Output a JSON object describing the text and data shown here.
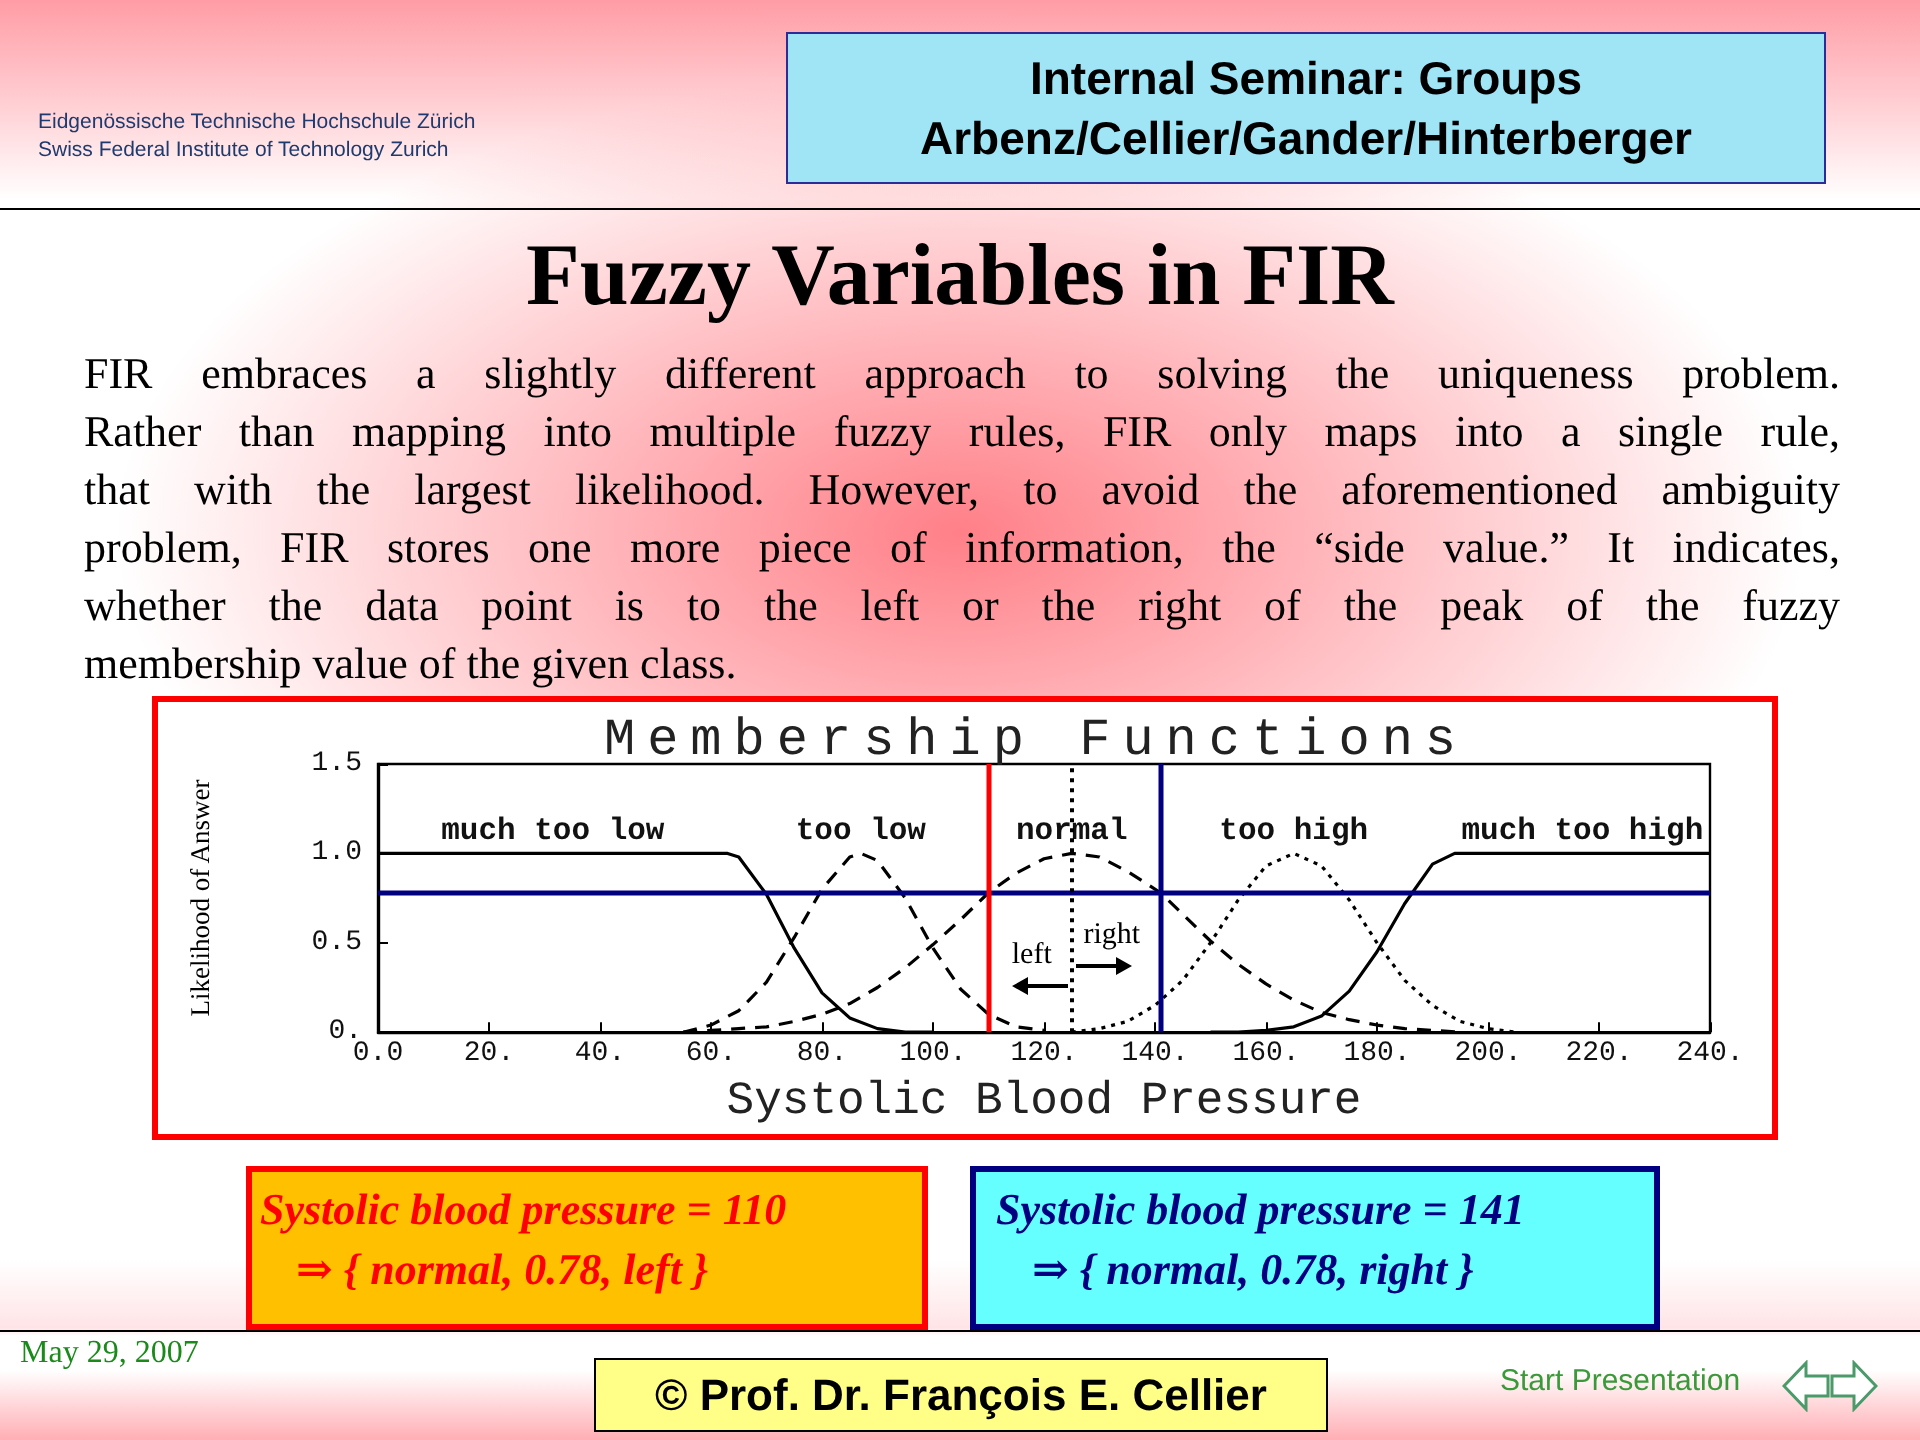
{
  "chart_data": {
    "type": "line",
    "title": "Membership Functions",
    "xlabel": "Systolic Blood Pressure",
    "ylabel": "Likelihood of Answer",
    "xlim": [
      0,
      240
    ],
    "xticks": [
      {
        "value": 0,
        "label": "0.0"
      },
      {
        "value": 20,
        "label": "20."
      },
      {
        "value": 40,
        "label": "40."
      },
      {
        "value": 60,
        "label": "60."
      },
      {
        "value": 80,
        "label": "80."
      },
      {
        "value": 100,
        "label": "100."
      },
      {
        "value": 120,
        "label": "120."
      },
      {
        "value": 140,
        "label": "140."
      },
      {
        "value": 160,
        "label": "160."
      },
      {
        "value": 180,
        "label": "180."
      },
      {
        "value": 200,
        "label": "200."
      },
      {
        "value": 220,
        "label": "220."
      },
      {
        "value": 240,
        "label": "240."
      }
    ],
    "ylim": [
      0,
      1.5
    ],
    "yticks": [
      {
        "value": 0,
        "label": "0."
      },
      0.5,
      {
        "value": 1,
        "label": "1.0"
      },
      1.5
    ],
    "marker": "none",
    "series": [
      {
        "name": "much too low",
        "color": "#000000",
        "line_style": "solid",
        "x": [
          0,
          63,
          65,
          70,
          75,
          80,
          85,
          90,
          95,
          100
        ],
        "values": [
          1,
          1,
          0.98,
          0.77,
          0.47,
          0.22,
          0.08,
          0.02,
          0,
          0
        ]
      },
      {
        "name": "too low",
        "color": "#000000",
        "line_style": "dashed",
        "x": [
          55,
          60,
          65,
          70,
          75,
          80,
          85,
          87,
          90,
          95,
          100,
          105,
          110,
          115,
          120
        ],
        "values": [
          0,
          0.04,
          0.12,
          0.28,
          0.53,
          0.8,
          0.98,
          1,
          0.96,
          0.75,
          0.47,
          0.24,
          0.1,
          0.03,
          0.01
        ]
      },
      {
        "name": "normal",
        "color": "#000000",
        "line_style": "dashed",
        "x": [
          55,
          60,
          65,
          70,
          75,
          80,
          85,
          90,
          95,
          100,
          105,
          110,
          115,
          120,
          125,
          130,
          135,
          141,
          145,
          150,
          155,
          160,
          165,
          170,
          175,
          180,
          185,
          190,
          195
        ],
        "values": [
          0,
          0.01,
          0.02,
          0.03,
          0.06,
          0.1,
          0.16,
          0.25,
          0.36,
          0.49,
          0.63,
          0.78,
          0.89,
          0.97,
          1,
          0.98,
          0.9,
          0.78,
          0.66,
          0.51,
          0.38,
          0.27,
          0.18,
          0.11,
          0.07,
          0.04,
          0.02,
          0.01,
          0
        ]
      },
      {
        "name": "too high",
        "color": "#000000",
        "line_style": "dotted",
        "x": [
          125,
          130,
          135,
          140,
          145,
          150,
          155,
          160,
          165,
          170,
          175,
          180,
          185,
          190,
          195,
          200,
          205
        ],
        "values": [
          0,
          0.02,
          0.06,
          0.15,
          0.29,
          0.5,
          0.74,
          0.93,
          1,
          0.93,
          0.74,
          0.5,
          0.29,
          0.15,
          0.06,
          0.02,
          0
        ]
      },
      {
        "name": "much too high",
        "color": "#000000",
        "line_style": "solid",
        "x": [
          150,
          155,
          160,
          165,
          170,
          175,
          180,
          185,
          190,
          194,
          240
        ],
        "values": [
          0,
          0,
          0.01,
          0.03,
          0.09,
          0.23,
          0.45,
          0.72,
          0.94,
          1,
          1
        ]
      }
    ],
    "ref_lines": [
      {
        "axis": "y",
        "value": 0.78,
        "color": "#000080"
      },
      {
        "axis": "x",
        "value": 110,
        "color": "#ff0000"
      },
      {
        "axis": "x",
        "value": 141,
        "color": "#000080"
      },
      {
        "axis": "x",
        "value": 125,
        "color": "#000000",
        "line_style": "dotted"
      }
    ],
    "annotations": [
      "Eidgenössische Technische Hochschule Zürich",
      "Swiss Federal Institute of Technology Zurich",
      "Internal Seminar: Groups",
      "Arbenz/Cellier/Gander/Hinterberger",
      "Fuzzy Variables in FIR",
      "FIR embraces a slightly different approach to solving the uniqueness problem.\nRather than mapping into multiple fuzzy rules, FIR only maps into a single rule,\nthat with the largest likelihood. However, to avoid the aforementioned ambiguity\nproblem, FIR stores one more piece of information, the “side value.” It indicates,\nwhether the data point is to the left or the right of the peak of the fuzzy\nmembership value of the given class.",
      "left",
      "right",
      "Systolic blood pressure = 110",
      "⇒ { normal, 0.78, left }",
      "Systolic blood pressure = 141",
      "⇒ { normal, 0.78, right }",
      "May 29, 2007",
      "© Prof. Dr. François E. Cellier",
      "Start Presentation"
    ]
  }
}
